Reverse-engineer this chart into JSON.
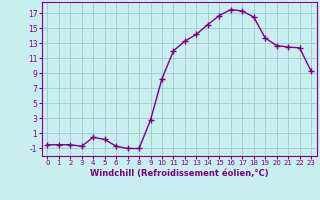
{
  "x": [
    0,
    1,
    2,
    3,
    4,
    5,
    6,
    7,
    8,
    9,
    10,
    11,
    12,
    13,
    14,
    15,
    16,
    17,
    18,
    19,
    20,
    21,
    22,
    23
  ],
  "y": [
    -0.5,
    -0.5,
    -0.5,
    -0.7,
    0.5,
    0.2,
    -0.7,
    -1.0,
    -1.0,
    2.8,
    8.3,
    12.0,
    13.3,
    14.2,
    15.5,
    16.7,
    17.5,
    17.3,
    16.5,
    13.7,
    12.7,
    12.5,
    12.4,
    9.3
  ],
  "line_color": "#800080",
  "marker": "+",
  "marker_size": 4,
  "xlim": [
    -0.5,
    23.5
  ],
  "ylim": [
    -2,
    18.5
  ],
  "yticks": [
    -1,
    1,
    3,
    5,
    7,
    9,
    11,
    13,
    15,
    17
  ],
  "xticks": [
    0,
    1,
    2,
    3,
    4,
    5,
    6,
    7,
    8,
    9,
    10,
    11,
    12,
    13,
    14,
    15,
    16,
    17,
    18,
    19,
    20,
    21,
    22,
    23
  ],
  "xlabel": "Windchill (Refroidissement éolien,°C)",
  "bg_color": "#c8eef0",
  "grid_color": "#a0c8cc",
  "tick_color": "#800080",
  "label_color": "#800080",
  "spine_color": "#800080"
}
